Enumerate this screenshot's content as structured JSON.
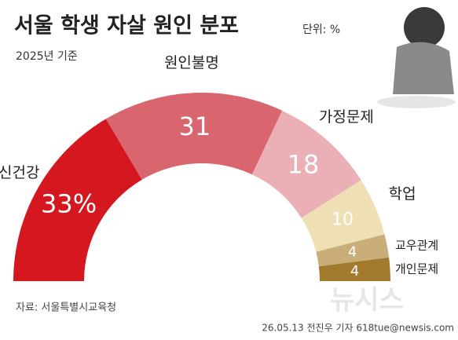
{
  "chart_data": {
    "type": "semi-donut",
    "title": "서울 학생 자살 원인 분포",
    "unit": "단위: %",
    "subtitle": "2025년 기준",
    "categories": [
      "정신건강",
      "원인불명",
      "가정문제",
      "학업",
      "교우관계",
      "개인문제"
    ],
    "values": [
      33,
      31,
      18,
      10,
      4,
      4
    ],
    "value_labels": [
      "33%",
      "31",
      "18",
      "10",
      "4",
      "4"
    ],
    "colors": [
      "#d5171f",
      "#d9666f",
      "#eab0b5",
      "#efdfb5",
      "#c9ae7a",
      "#a27a2e"
    ],
    "source": "자료: 서울특별시교육청",
    "credit": "26.05.13 전진우 기자 618tue@newsis.com",
    "watermark": "뉴시스"
  }
}
